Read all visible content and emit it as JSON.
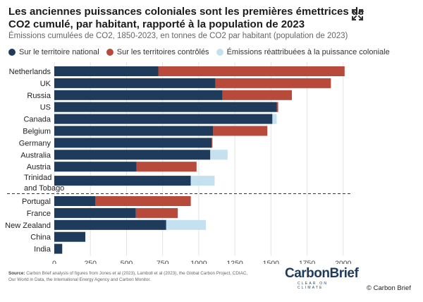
{
  "header": {
    "title": "Les anciennes puissances coloniales sont les premières émettrices de CO2 cumulé, par habitant, rapporté à la population de 2023",
    "subtitle": "Émissions cumulées de CO2, 1850-2023, en tonnes de CO2 par habitant (population de 2023)"
  },
  "legend": {
    "items": [
      {
        "label": "Sur le territoire national",
        "color": "#1f3b5c"
      },
      {
        "label": "Sur les territoires contrôlés",
        "color": "#b84a3c"
      },
      {
        "label": "Émissions réattribuées à la puissance coloniale",
        "color": "#c5e1f0"
      }
    ]
  },
  "chart_data": {
    "type": "bar",
    "orientation": "horizontal",
    "stacked": true,
    "title": "Les anciennes puissances coloniales sont les premières émettrices de CO2 cumulé, par habitant, rapporté à la population de 2023",
    "subtitle": "Émissions cumulées de CO2, 1850-2023, en tonnes de CO2 par habitant (population de 2023)",
    "categories": [
      "Netherlands",
      "UK",
      "Russia",
      "US",
      "Canada",
      "Belgium",
      "Germany",
      "Australia",
      "Austria",
      "Trinidad and Tobago",
      "Portugal",
      "France",
      "New Zealand",
      "China",
      "India"
    ],
    "series": [
      {
        "name": "Sur le territoire national",
        "color": "#1f3b5c",
        "values": [
          720,
          1115,
          1165,
          1540,
          1510,
          1100,
          1090,
          1080,
          570,
          945,
          285,
          565,
          775,
          215,
          55
        ]
      },
      {
        "name": "Sur les territoires contrôlés",
        "color": "#b84a3c",
        "values": [
          1290,
          800,
          480,
          10,
          0,
          375,
          5,
          0,
          415,
          0,
          660,
          290,
          0,
          0,
          0
        ]
      },
      {
        "name": "Émissions réattribuées à la puissance coloniale",
        "color": "#c5e1f0",
        "values": [
          0,
          0,
          0,
          0,
          30,
          0,
          0,
          120,
          0,
          165,
          0,
          0,
          275,
          0,
          0
        ]
      }
    ],
    "separator_after": "Trinidad and Tobago",
    "xlim": [
      0,
      2050
    ],
    "xticks": [
      0,
      250,
      500,
      750,
      1000,
      1250,
      1500,
      1750,
      2000
    ],
    "grid": true,
    "legend_position": "top"
  },
  "footer": {
    "source_label": "Source:",
    "source_text": "Carbon Brief analysis of figures from Jones et al (2023), Lamboll et al (2023), the Global Carbon Project, CDIAC, Our World in Data, the International Energy Agency and Carbon Monitor.",
    "logo_text": "CarbonBrief",
    "logo_tagline": "CLEAR ON CLIMATE",
    "copyright": "© Carbon Brief"
  },
  "icons": {
    "expand": "expand-icon"
  }
}
